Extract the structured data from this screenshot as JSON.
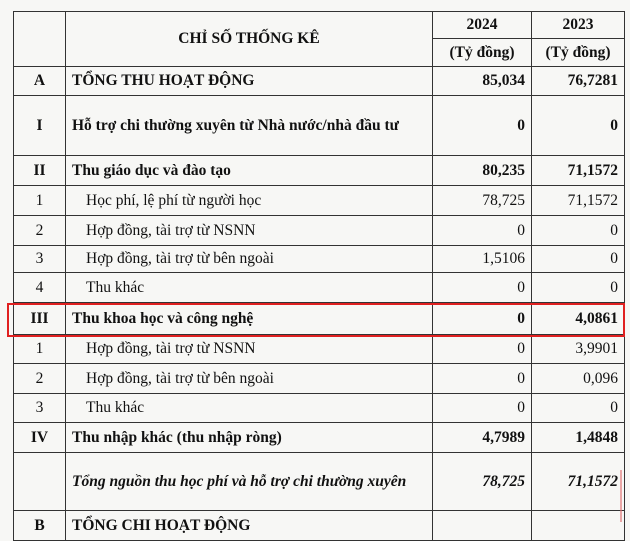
{
  "header": {
    "title": "CHỈ SỐ THỐNG KÊ",
    "year1": "2024",
    "year2": "2023",
    "unit": "(Tỷ đồng)"
  },
  "rows": [
    {
      "code": "A",
      "label": "TỔNG THU HOẠT ĐỘNG",
      "v2024": "85,034",
      "v2023": "76,7281",
      "style": "bold"
    },
    {
      "code": "I",
      "label": "Hỗ trợ chi thường xuyên từ Nhà nước/nhà đầu tư",
      "v2024": "0",
      "v2023": "0",
      "style": "bold"
    },
    {
      "code": "II",
      "label": "Thu giáo dục và đào tạo",
      "v2024": "80,235",
      "v2023": "71,1572",
      "style": "bold"
    },
    {
      "code": "1",
      "label": "Học phí, lệ phí từ người học",
      "v2024": "78,725",
      "v2023": "71,1572",
      "style": "sub"
    },
    {
      "code": "2",
      "label": "Hợp đồng, tài trợ từ NSNN",
      "v2024": "0",
      "v2023": "0",
      "style": "sub"
    },
    {
      "code": "3",
      "label": "Hợp đồng, tài trợ từ bên ngoài",
      "v2024": "1,5106",
      "v2023": "0",
      "style": "sub"
    },
    {
      "code": "4",
      "label": "Thu khác",
      "v2024": "0",
      "v2023": "0",
      "style": "sub"
    },
    {
      "code": "III",
      "label": "Thu khoa học và công nghệ",
      "v2024": "0",
      "v2023": "4,0861",
      "style": "bold"
    },
    {
      "code": "1",
      "label": "Hợp đồng, tài trợ từ NSNN",
      "v2024": "0",
      "v2023": "3,9901",
      "style": "sub"
    },
    {
      "code": "2",
      "label": "Hợp đồng, tài trợ từ bên ngoài",
      "v2024": "0",
      "v2023": "0,096",
      "style": "sub"
    },
    {
      "code": "3",
      "label": "Thu khác",
      "v2024": "0",
      "v2023": "0",
      "style": "sub"
    },
    {
      "code": "IV",
      "label": "Thu nhập khác (thu nhập ròng)",
      "v2024": "4,7989",
      "v2023": "1,4848",
      "style": "bold"
    },
    {
      "code": "",
      "label": "Tổng nguồn thu học phí và hỗ trợ chi thường xuyên",
      "v2024": "78,725",
      "v2023": "71,1572",
      "style": "italic"
    },
    {
      "code": "B",
      "label": "TỔNG CHI HOẠT ĐỘNG",
      "v2024": "",
      "v2023": "",
      "style": "bold"
    }
  ],
  "highlight": {
    "row": "III",
    "color": "#e02020"
  }
}
